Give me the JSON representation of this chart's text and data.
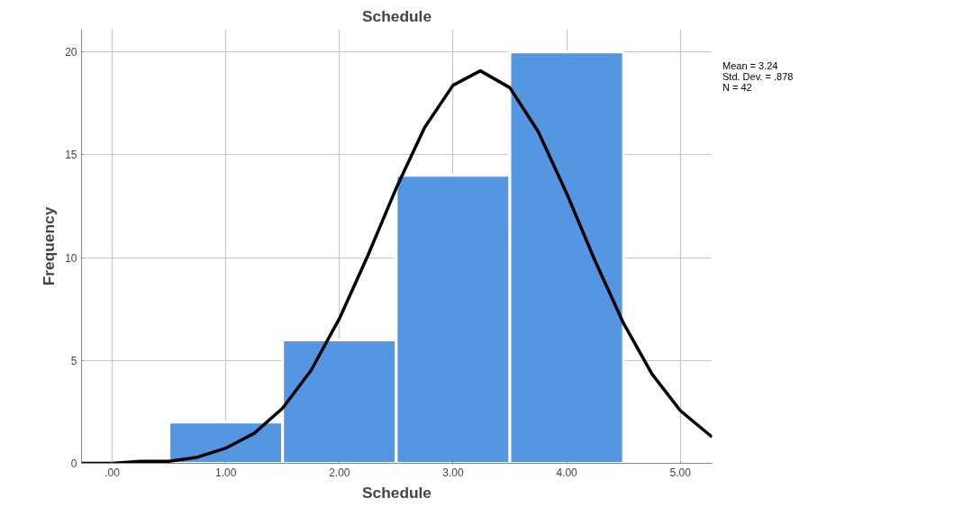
{
  "chart_data": {
    "type": "histogram",
    "title": "Schedule",
    "xlabel": "Schedule",
    "ylabel": "Frequency",
    "annotations": [
      "Mean = 3.24",
      "Std. Dev. = .878",
      "N = 42"
    ],
    "xlim": [
      -0.27,
      5.28
    ],
    "ylim": [
      0,
      21.1
    ],
    "xticks": [
      {
        "value": 0,
        "label": ".00"
      },
      {
        "value": 1,
        "label": "1.00"
      },
      {
        "value": 2,
        "label": "2.00"
      },
      {
        "value": 3,
        "label": "3.00"
      },
      {
        "value": 4,
        "label": "4.00"
      },
      {
        "value": 5,
        "label": "5.00"
      }
    ],
    "yticks": [
      0,
      5,
      10,
      15,
      20
    ],
    "grid": true,
    "series": [
      {
        "color": "#5596e3",
        "bins": [
          0.5,
          1.5,
          2.5,
          3.5,
          4.5
        ],
        "values": [
          2,
          6,
          14,
          20
        ]
      },
      {
        "type": "line",
        "color": "#000000",
        "x": [
          -0.27,
          0,
          0.25,
          0.5,
          0.75,
          1.0,
          1.25,
          1.5,
          1.75,
          2.0,
          2.25,
          2.5,
          2.75,
          3.0,
          3.24,
          3.5,
          3.75,
          4.0,
          4.25,
          4.5,
          4.75,
          5.0,
          5.28
        ],
        "values": [
          0.0,
          0.0,
          0.1,
          0.1,
          0.3,
          0.74,
          1.46,
          2.68,
          4.52,
          7.04,
          10.1,
          13.38,
          16.33,
          18.38,
          19.08,
          18.26,
          16.12,
          13.12,
          9.84,
          6.81,
          4.35,
          2.56,
          1.28
        ]
      }
    ]
  }
}
